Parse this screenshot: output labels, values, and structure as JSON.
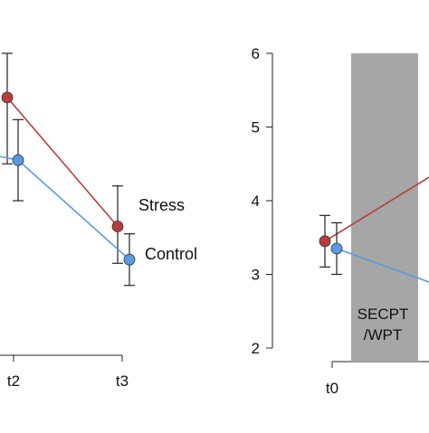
{
  "chart_data": [
    {
      "type": "line",
      "x_ticks": [
        "t2",
        "t3"
      ],
      "ylim": [
        2,
        6
      ],
      "series": [
        {
          "name": "Stress",
          "color": "#b83c3c",
          "points": [
            {
              "x": "t2",
              "y": 5.4,
              "err_low": 4.5,
              "err_high": 6.0
            },
            {
              "x": "t3",
              "y": 3.65,
              "err_low": 3.15,
              "err_high": 4.2
            }
          ]
        },
        {
          "name": "Control",
          "color": "#5a9be0",
          "points": [
            {
              "x": "t2",
              "y": 4.55,
              "err_low": 4.0,
              "err_high": 5.1
            },
            {
              "x": "t3",
              "y": 3.2,
              "err_low": 2.85,
              "err_high": 3.55
            }
          ]
        }
      ]
    },
    {
      "type": "line",
      "x_ticks": [
        "t0"
      ],
      "y_ticks": [
        "2",
        "3",
        "4",
        "5",
        "6"
      ],
      "ylim": [
        2,
        6
      ],
      "shaded_region_label": [
        "SECPT",
        "/WPT"
      ],
      "shaded_color": "#a6a6a6",
      "series": [
        {
          "name": "Stress",
          "color": "#b83c3c",
          "points": [
            {
              "x": "t0",
              "y": 3.45,
              "err_low": 3.1,
              "err_high": 3.8
            }
          ]
        },
        {
          "name": "Control",
          "color": "#5a9be0",
          "points": [
            {
              "x": "t0",
              "y": 3.35,
              "err_low": 3.0,
              "err_high": 3.7
            }
          ]
        }
      ]
    }
  ]
}
